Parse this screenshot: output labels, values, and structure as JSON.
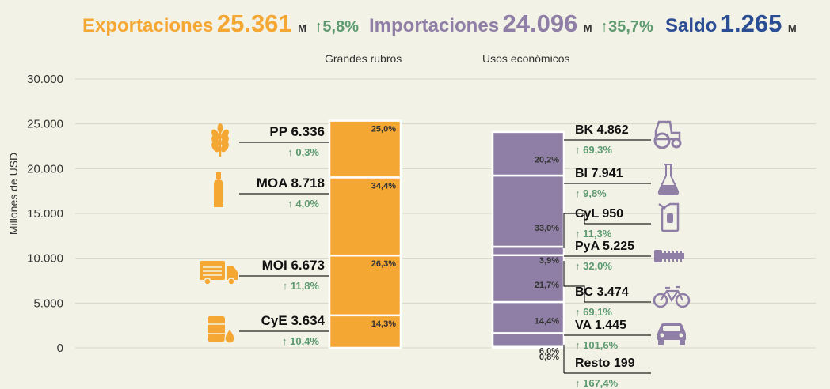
{
  "header": {
    "exports": {
      "label": "Exportaciones",
      "value": "25.361",
      "unit": "M",
      "change": "5,8%"
    },
    "imports": {
      "label": "Importaciones",
      "value": "24.096",
      "unit": "M",
      "change": "35,7%"
    },
    "balance": {
      "label": "Saldo",
      "value": "1.265",
      "unit": "M"
    }
  },
  "colors": {
    "exports": "#f5a733",
    "imports": "#8f7fa6",
    "balance": "#2a4d94",
    "change": "#5d9a70",
    "grid": "#d7d6c6",
    "background": "#f3f2e6"
  },
  "chart_data": {
    "type": "bar",
    "ylabel": "Millones de USD",
    "ylim": [
      0,
      30000
    ],
    "yticks": [
      "0",
      "5.000",
      "10.000",
      "15.000",
      "20.000",
      "25.000",
      "30.000"
    ],
    "ytick_values": [
      0,
      5000,
      10000,
      15000,
      20000,
      25000,
      30000
    ],
    "grid": true,
    "categories": [
      "Grandes rubros",
      "Usos económicos"
    ],
    "series": [
      {
        "stack": "Grandes rubros",
        "color": "#f5a733",
        "segments": [
          {
            "code": "CyE",
            "value": 3634,
            "value_label": "3.634",
            "share": "14,3%",
            "change": "10,4%",
            "icon": "oil-barrel-icon"
          },
          {
            "code": "MOI",
            "value": 6673,
            "value_label": "6.673",
            "share": "26,3%",
            "change": "11,8%",
            "icon": "truck-icon"
          },
          {
            "code": "MOA",
            "value": 8718,
            "value_label": "8.718",
            "share": "34,4%",
            "change": "4,0%",
            "icon": "bottle-icon"
          },
          {
            "code": "PP",
            "value": 6336,
            "value_label": "6.336",
            "share": "25,0%",
            "change": "0,3%",
            "icon": "wheat-icon"
          }
        ]
      },
      {
        "stack": "Usos económicos",
        "color": "#8f7fa6",
        "segments": [
          {
            "code": "Resto",
            "value": 199,
            "value_label": "199",
            "share": "0,8%",
            "change": "167,4%",
            "icon": ""
          },
          {
            "code": "VA",
            "value": 1445,
            "value_label": "1.445",
            "share": "6,0%",
            "change": "101,6%",
            "icon": "car-icon"
          },
          {
            "code": "BC",
            "value": 3474,
            "value_label": "3.474",
            "share": "14,4%",
            "change": "69,1%",
            "icon": "bicycle-icon"
          },
          {
            "code": "PyA",
            "value": 5225,
            "value_label": "5.225",
            "share": "21,7%",
            "change": "32,0%",
            "icon": "bolt-icon"
          },
          {
            "code": "CyL",
            "value": 950,
            "value_label": "950",
            "share": "3,9%",
            "change": "11,3%",
            "icon": "fuel-can-icon"
          },
          {
            "code": "BI",
            "value": 7941,
            "value_label": "7.941",
            "share": "33,0%",
            "change": "9,8%",
            "icon": "flask-icon"
          },
          {
            "code": "BK",
            "value": 4862,
            "value_label": "4.862",
            "share": "20,2%",
            "change": "69,3%",
            "icon": "tractor-icon"
          }
        ]
      }
    ]
  }
}
